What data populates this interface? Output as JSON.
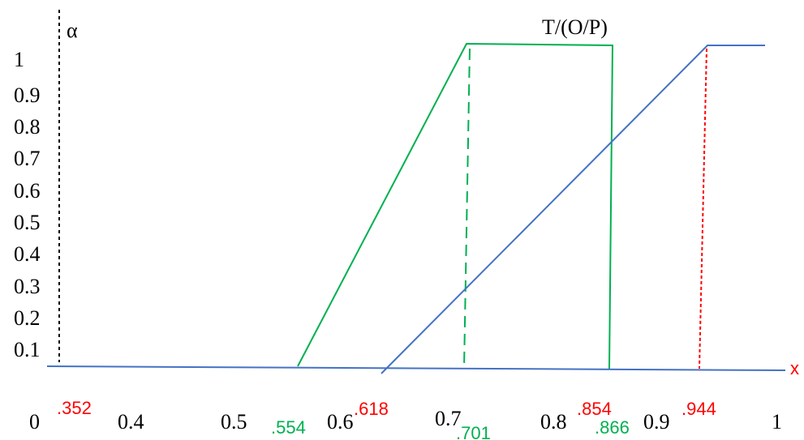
{
  "title": "T/(O/P)",
  "axes": {
    "y_symbol": "α",
    "x_symbol": "x",
    "y_ticks": [
      "1",
      "0.9",
      "0.8",
      "0.7",
      "0.6",
      "0.5",
      "0.4",
      "0.3",
      "0.2",
      "0.1"
    ],
    "x_ticks": [
      "0",
      "0.4",
      "0.5",
      "0.6",
      "0.7",
      "0.8",
      "0.9",
      "1"
    ]
  },
  "annotations": {
    "red": [
      ".352",
      ".618",
      ".854",
      ".944"
    ],
    "green": [
      ".554",
      ".701",
      ".866"
    ]
  },
  "colors": {
    "axis": "#000000",
    "baseline": "#4472c4",
    "green": "#00b050",
    "red": "#ff0000",
    "text": "#000000"
  }
}
